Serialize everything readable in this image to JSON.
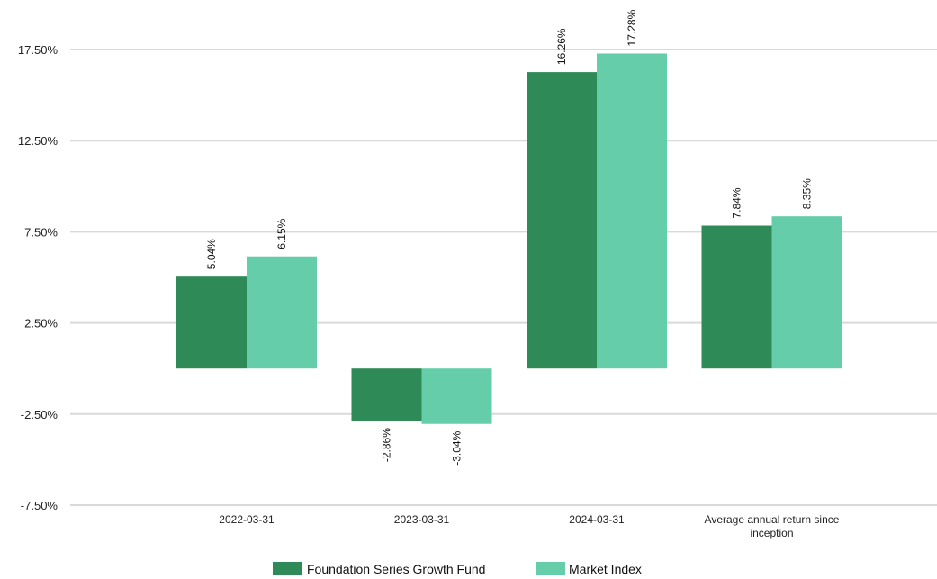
{
  "chart_data": {
    "type": "bar",
    "categories": [
      "2022-03-31",
      "2023-03-31",
      "2024-03-31",
      "Average annual return since inception"
    ],
    "series": [
      {
        "name": "Foundation Series Growth Fund",
        "values": [
          5.04,
          -2.86,
          16.26,
          7.84
        ],
        "labels": [
          "5.04%",
          "-2.86%",
          "16.26%",
          "7.84%"
        ],
        "color": "#2e8b57"
      },
      {
        "name": "Market Index",
        "values": [
          6.15,
          -3.04,
          17.28,
          8.35
        ],
        "labels": [
          "6.15%",
          "-3.04%",
          "17.28%",
          "8.35%"
        ],
        "color": "#66cdaa"
      }
    ],
    "yticks": [
      -7.5,
      -2.5,
      2.5,
      7.5,
      12.5,
      17.5
    ],
    "ytick_labels": [
      "-7.50%",
      "-2.50%",
      "2.50%",
      "7.50%",
      "12.50%",
      "17.50%"
    ],
    "ylim": [
      -7.5,
      17.5
    ],
    "grid": true,
    "legend_position": "bottom-center"
  }
}
